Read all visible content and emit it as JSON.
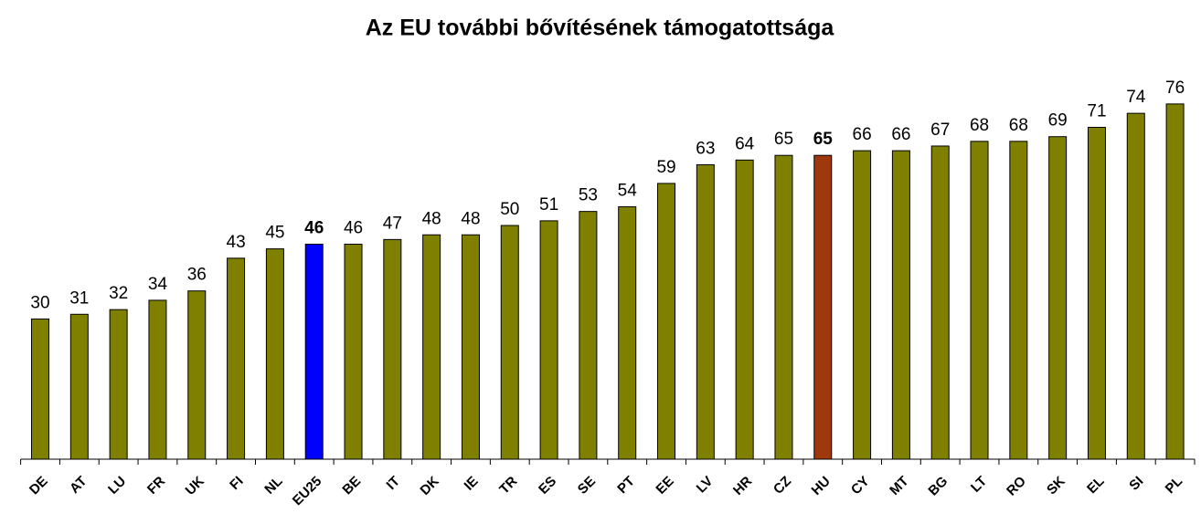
{
  "chart_data": {
    "type": "bar",
    "title": "Az EU további bővítésének támogatottsága",
    "categories": [
      "DE",
      "AT",
      "LU",
      "FR",
      "UK",
      "FI",
      "NL",
      "EU25",
      "BE",
      "IT",
      "DK",
      "IE",
      "TR",
      "ES",
      "SE",
      "PT",
      "EE",
      "LV",
      "HR",
      "CZ",
      "HU",
      "CY",
      "MT",
      "BG",
      "LT",
      "RO",
      "SK",
      "EL",
      "SI",
      "PL"
    ],
    "values": [
      30,
      31,
      32,
      34,
      36,
      43,
      45,
      46,
      46,
      47,
      48,
      48,
      50,
      51,
      53,
      54,
      59,
      63,
      64,
      65,
      65,
      66,
      66,
      67,
      68,
      68,
      69,
      71,
      74,
      76
    ],
    "colors": [
      "#808000",
      "#808000",
      "#808000",
      "#808000",
      "#808000",
      "#808000",
      "#808000",
      "#0000ff",
      "#808000",
      "#808000",
      "#808000",
      "#808000",
      "#808000",
      "#808000",
      "#808000",
      "#808000",
      "#808000",
      "#808000",
      "#808000",
      "#808000",
      "#a0380e",
      "#808000",
      "#808000",
      "#808000",
      "#808000",
      "#808000",
      "#808000",
      "#808000",
      "#808000",
      "#808000"
    ],
    "ylim": [
      0,
      80
    ]
  }
}
